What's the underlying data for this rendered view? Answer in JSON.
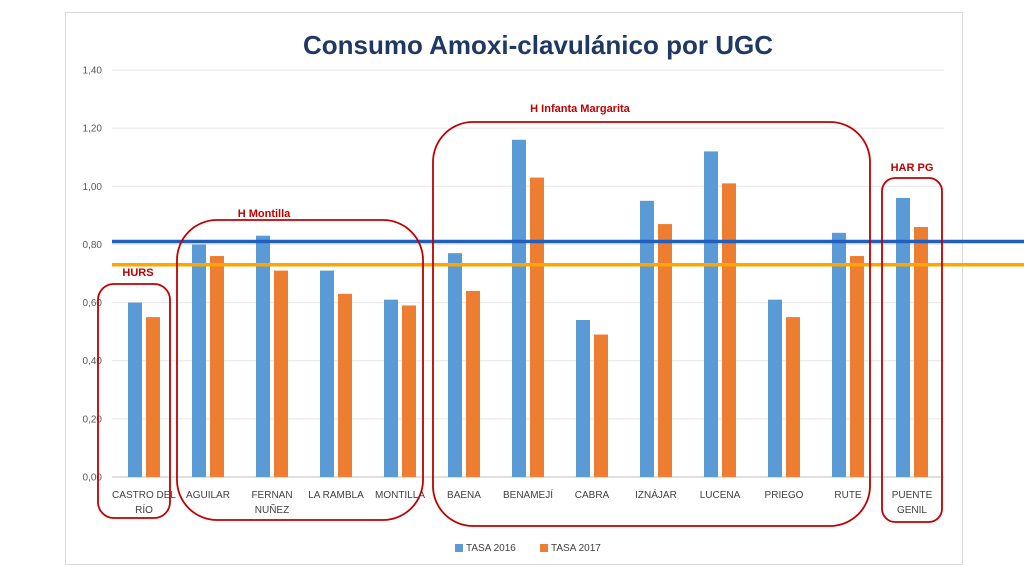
{
  "chart_data": {
    "type": "bar",
    "title": "Consumo Amoxi-clavulánico por UGC",
    "categories": [
      "CASTRO DEL RÍO",
      "AGUILAR",
      "FERNAN NUÑEZ",
      "LA RAMBLA",
      "MONTILLA",
      "BAENA",
      "BENAMEJÍ",
      "CABRA",
      "IZNÁJAR",
      "LUCENA",
      "PRIEGO",
      "RUTE",
      "PUENTE GENIL"
    ],
    "category_lines": [
      [
        "CASTRO DEL",
        "RÍO"
      ],
      [
        "AGUILAR"
      ],
      [
        "FERNAN",
        "NUÑEZ"
      ],
      [
        "LA RAMBLA"
      ],
      [
        "MONTILLA"
      ],
      [
        "BAENA"
      ],
      [
        "BENAMEJÍ"
      ],
      [
        "CABRA"
      ],
      [
        "IZNÁJAR"
      ],
      [
        "LUCENA"
      ],
      [
        "PRIEGO"
      ],
      [
        "RUTE"
      ],
      [
        "PUENTE",
        "GENIL"
      ]
    ],
    "series": [
      {
        "name": "TASA 2016",
        "color": "#5b9bd5",
        "values": [
          0.6,
          0.8,
          0.83,
          0.71,
          0.61,
          0.77,
          1.16,
          0.54,
          0.95,
          1.12,
          0.61,
          0.84,
          0.96
        ]
      },
      {
        "name": "TASA 2017",
        "color": "#ed7d31",
        "values": [
          0.55,
          0.76,
          0.71,
          0.63,
          0.59,
          0.64,
          1.03,
          0.49,
          0.87,
          1.01,
          0.55,
          0.76,
          0.86
        ]
      }
    ],
    "ylim": [
      0,
      1.4
    ],
    "yticks": [
      "0,00",
      "0,20",
      "0,40",
      "0,60",
      "0,80",
      "1,00",
      "1,20",
      "1,40"
    ],
    "ytick_values": [
      0,
      0.2,
      0.4,
      0.6,
      0.8,
      1.0,
      1.2,
      1.4
    ],
    "grid": true,
    "legend": "bottom",
    "reference_lines": [
      {
        "value": 0.81,
        "color": "#1f5fbf"
      },
      {
        "value": 0.73,
        "color": "#ffa500"
      }
    ],
    "groups": [
      {
        "label": "HURS",
        "from": 0,
        "to": 0
      },
      {
        "label": "H Montilla",
        "from": 1,
        "to": 4
      },
      {
        "label": "H Infanta Margarita",
        "from": 5,
        "to": 11
      },
      {
        "label": "HAR PG",
        "from": 12,
        "to": 12
      }
    ],
    "group_color": "#c00000"
  }
}
